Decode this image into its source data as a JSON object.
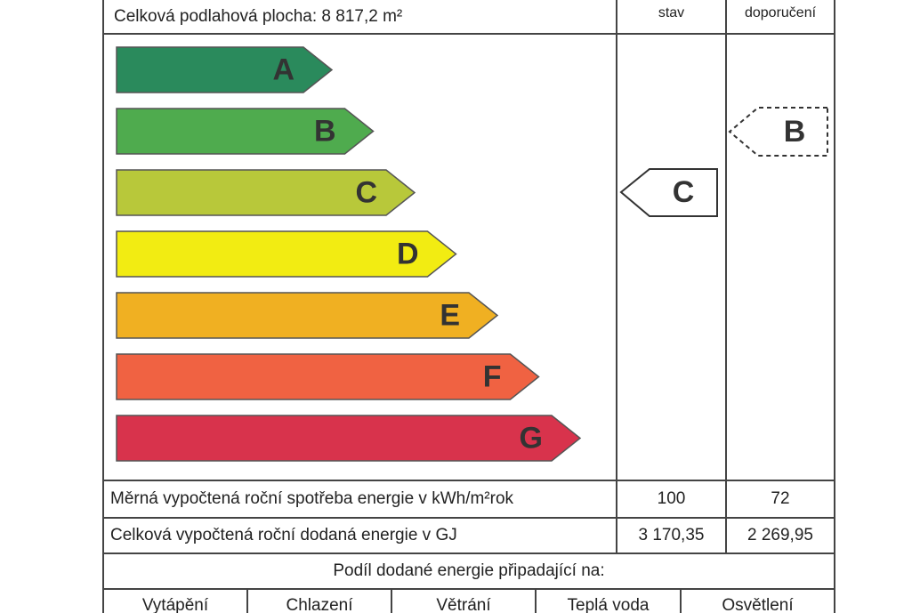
{
  "header": {
    "area": "Celková podlahová plocha: 8 817,2 m²",
    "col_current": "stav",
    "col_recommended": "doporučení"
  },
  "classes": [
    "A",
    "B",
    "C",
    "D",
    "E",
    "F",
    "G"
  ],
  "current_class": "C",
  "recommended_class": "B",
  "rows": [
    {
      "label": "Měrná vypočtená roční spotřeba energie v kWh/m²rok",
      "current": "100",
      "recommended": "72"
    },
    {
      "label": "Celková vypočtená roční dodaná energie v GJ",
      "current": "3 170,35",
      "recommended": "2 269,95"
    }
  ],
  "share": {
    "title": "Podíl dodané energie připadající na:",
    "items": [
      "Vytápění",
      "Chlazení",
      "Větrání",
      "Teplá voda",
      "Osvětlení"
    ]
  }
}
